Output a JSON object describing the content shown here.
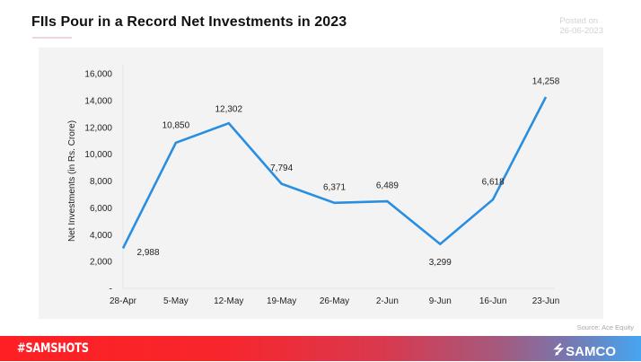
{
  "header": {
    "title": "FIIs Pour in a Record Net Investments in 2023",
    "posted_label": "Posted on",
    "posted_date": "26-06-2023"
  },
  "source": "Source:  Ace Equity",
  "footer": {
    "hashtag": "#SAMSHOTS",
    "brand": "SAMCO",
    "brand_icon": "samco-logo-icon"
  },
  "colors": {
    "line": "#2a8ee0",
    "panel_bg": "#f3f3f3",
    "footer_left": "#fe1f24",
    "footer_right": "#45a6f0"
  },
  "chart_data": {
    "type": "line",
    "title": "FIIs Pour in a Record Net Investments in 2023",
    "xlabel": "",
    "ylabel": "Net Investments (in Rs. Crore)",
    "categories": [
      "28-Apr",
      "5-May",
      "12-May",
      "19-May",
      "26-May",
      "2-Jun",
      "9-Jun",
      "16-Jun",
      "23-Jun"
    ],
    "values": [
      2988,
      10850,
      12302,
      7794,
      6371,
      6489,
      3299,
      6618,
      14258
    ],
    "data_labels": [
      "2,988",
      "10,850",
      "12,302",
      "7,794",
      "6,371",
      "6,489",
      "3,299",
      "6,618",
      "14,258"
    ],
    "yticks": [
      "-",
      "2,000",
      "4,000",
      "6,000",
      "8,000",
      "10,000",
      "12,000",
      "14,000",
      "16,000"
    ],
    "ylim": [
      0,
      16000
    ],
    "grid": false,
    "legend": null
  }
}
